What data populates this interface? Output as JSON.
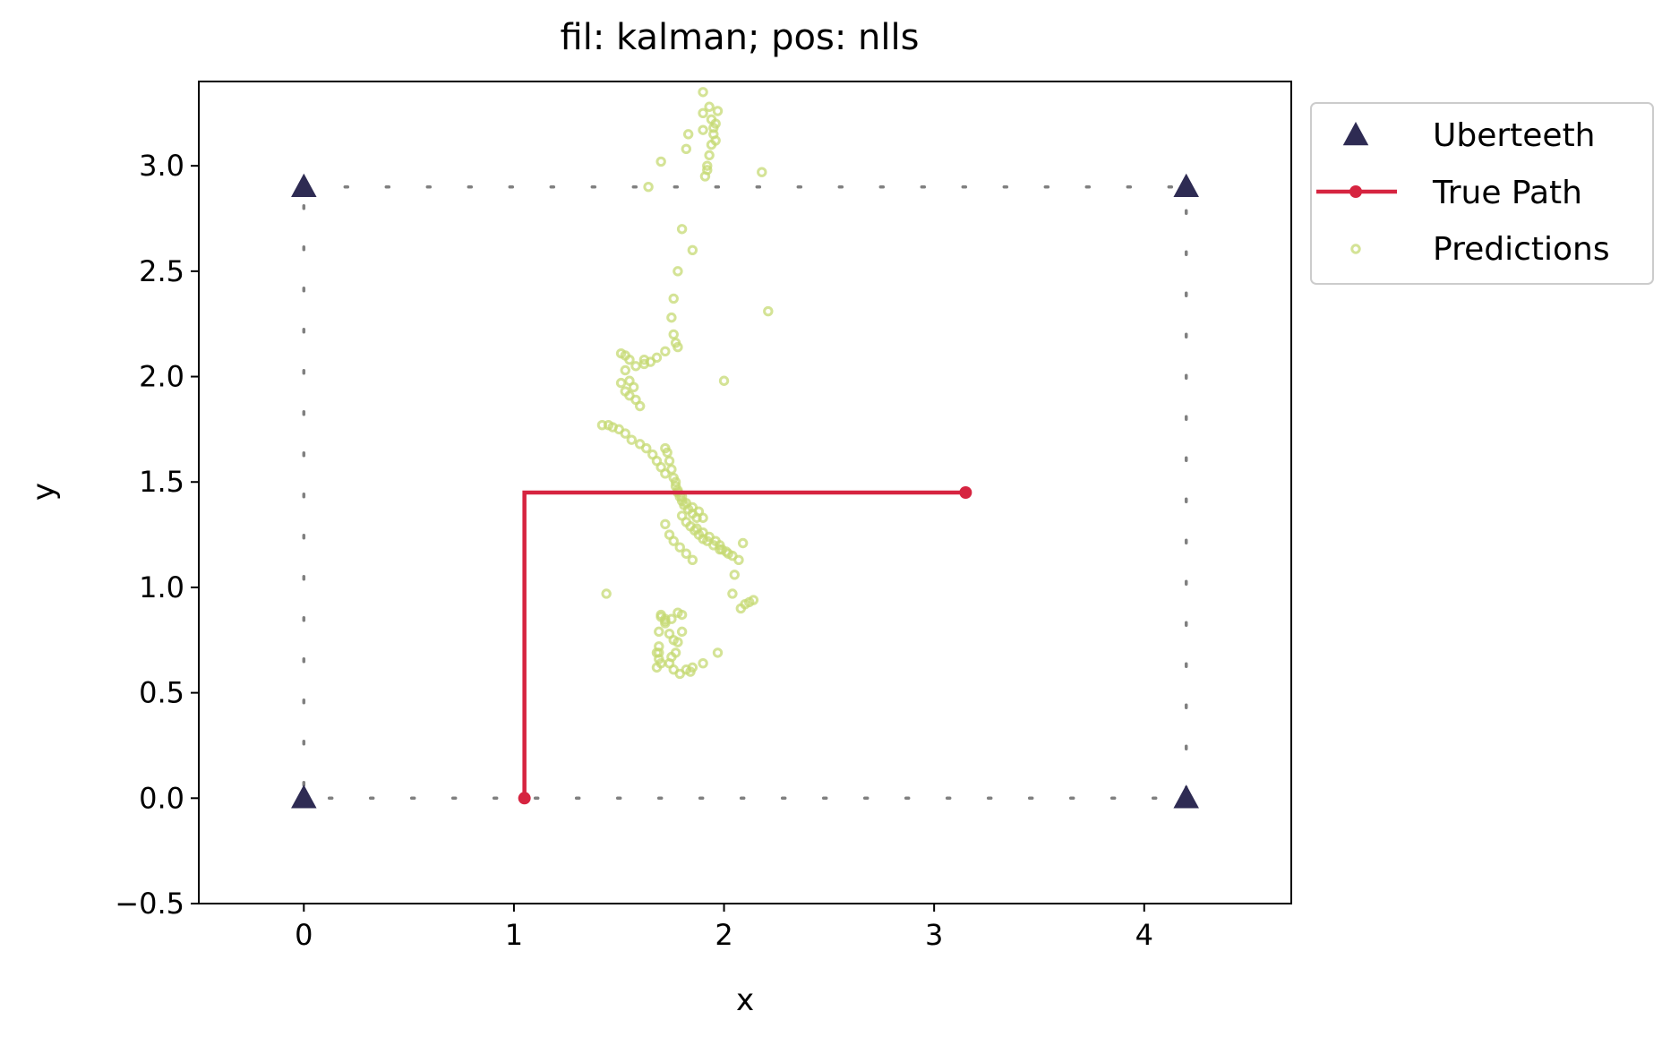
{
  "chart_data": {
    "type": "scatter",
    "title": "fil: kalman; pos: nlls",
    "xlabel": "x",
    "ylabel": "y",
    "xlim": [
      -0.5,
      4.7
    ],
    "ylim": [
      -0.5,
      3.4
    ],
    "xticks": [
      0,
      1,
      2,
      3,
      4
    ],
    "xtick_labels": [
      "0",
      "1",
      "2",
      "3",
      "4"
    ],
    "yticks": [
      -0.5,
      0.0,
      0.5,
      1.0,
      1.5,
      2.0,
      2.5,
      3.0
    ],
    "ytick_labels": [
      "−0.5",
      "0.0",
      "0.5",
      "1.0",
      "1.5",
      "2.0",
      "2.5",
      "3.0"
    ],
    "grid": false,
    "legend_position": "outside upper-right",
    "series": [
      {
        "name": "Uberteeth",
        "kind": "marker-triangle",
        "color": "#2e2b53",
        "x": [
          0.0,
          4.2,
          0.0,
          4.2
        ],
        "y": [
          2.9,
          2.9,
          0.0,
          0.0
        ]
      },
      {
        "name": "True Path",
        "kind": "line-with-markers",
        "color": "#d62440",
        "x": [
          1.05,
          1.05,
          3.15
        ],
        "y": [
          0.0,
          1.45,
          1.45
        ]
      },
      {
        "name": "Predictions",
        "kind": "hollow-points",
        "color": "#c5da73",
        "x": [
          1.91,
          1.92,
          1.93,
          1.94,
          1.95,
          1.96,
          1.97,
          1.93,
          1.94,
          1.95,
          1.96,
          1.9,
          1.9,
          1.9,
          1.83,
          1.82,
          1.7,
          1.64,
          2.18,
          1.92,
          1.8,
          2.21,
          1.85,
          1.78,
          1.76,
          1.75,
          1.76,
          1.77,
          1.78,
          1.72,
          1.68,
          1.65,
          1.62,
          1.58,
          1.55,
          1.53,
          1.51,
          1.53,
          1.55,
          1.57,
          1.51,
          1.53,
          1.55,
          1.58,
          1.6,
          1.62,
          2.0,
          1.42,
          1.45,
          1.47,
          1.5,
          1.53,
          1.56,
          1.6,
          1.63,
          1.66,
          1.68,
          1.7,
          1.72,
          1.72,
          1.73,
          1.74,
          1.75,
          1.76,
          1.77,
          1.78,
          1.79,
          1.8,
          1.81,
          1.83,
          1.85,
          1.87,
          1.8,
          1.82,
          1.84,
          1.86,
          1.88,
          1.9,
          1.92,
          1.95,
          1.98,
          2.01,
          2.04,
          2.07,
          2.09,
          1.77,
          1.78,
          1.8,
          1.82,
          1.85,
          1.88,
          1.9,
          1.87,
          1.9,
          1.93,
          1.96,
          1.98,
          1.99,
          2.02,
          2.05,
          1.72,
          1.74,
          1.76,
          1.79,
          1.82,
          1.85,
          1.74,
          1.76,
          1.78,
          1.8,
          1.7,
          1.72,
          2.04,
          1.69,
          1.68,
          2.08,
          2.1,
          2.12,
          2.14,
          1.44,
          1.72,
          1.69,
          1.69,
          1.7,
          1.68,
          1.84,
          1.85,
          1.82,
          1.79,
          1.76,
          1.74,
          1.75,
          1.77,
          1.69,
          1.7,
          1.72,
          1.75,
          1.78,
          1.8,
          1.9,
          1.97
        ],
        "y": [
          2.95,
          3.0,
          3.05,
          3.1,
          3.15,
          3.2,
          3.26,
          3.28,
          3.22,
          3.18,
          3.12,
          3.35,
          3.25,
          3.17,
          3.15,
          3.08,
          3.02,
          2.9,
          2.97,
          2.98,
          2.7,
          2.31,
          2.6,
          2.5,
          2.37,
          2.28,
          2.2,
          2.16,
          2.14,
          2.12,
          2.09,
          2.07,
          2.06,
          2.05,
          2.08,
          2.1,
          2.11,
          2.03,
          1.98,
          1.95,
          1.97,
          1.93,
          1.91,
          1.89,
          1.86,
          2.08,
          1.98,
          1.77,
          1.77,
          1.76,
          1.75,
          1.73,
          1.7,
          1.68,
          1.66,
          1.63,
          1.6,
          1.57,
          1.54,
          1.66,
          1.64,
          1.6,
          1.56,
          1.52,
          1.48,
          1.45,
          1.43,
          1.41,
          1.39,
          1.37,
          1.35,
          1.33,
          1.34,
          1.31,
          1.29,
          1.27,
          1.25,
          1.23,
          1.22,
          1.2,
          1.18,
          1.17,
          1.15,
          1.13,
          1.21,
          1.5,
          1.46,
          1.43,
          1.4,
          1.38,
          1.36,
          1.33,
          1.28,
          1.26,
          1.24,
          1.22,
          1.2,
          1.18,
          1.16,
          1.06,
          1.3,
          1.25,
          1.22,
          1.19,
          1.16,
          1.13,
          0.78,
          0.75,
          0.74,
          0.79,
          0.86,
          0.84,
          0.97,
          0.72,
          0.69,
          0.9,
          0.92,
          0.93,
          0.94,
          0.97,
          0.85,
          0.69,
          0.66,
          0.64,
          0.62,
          0.6,
          0.62,
          0.61,
          0.59,
          0.61,
          0.64,
          0.67,
          0.69,
          0.79,
          0.87,
          0.83,
          0.85,
          0.88,
          0.87,
          0.64,
          0.69
        ]
      }
    ],
    "reference_outline": {
      "style": "dotted",
      "color": "#808080",
      "x": [
        0.0,
        4.2,
        4.2,
        0.0,
        0.0
      ],
      "y": [
        2.9,
        2.9,
        0.0,
        0.0,
        2.9
      ]
    }
  }
}
